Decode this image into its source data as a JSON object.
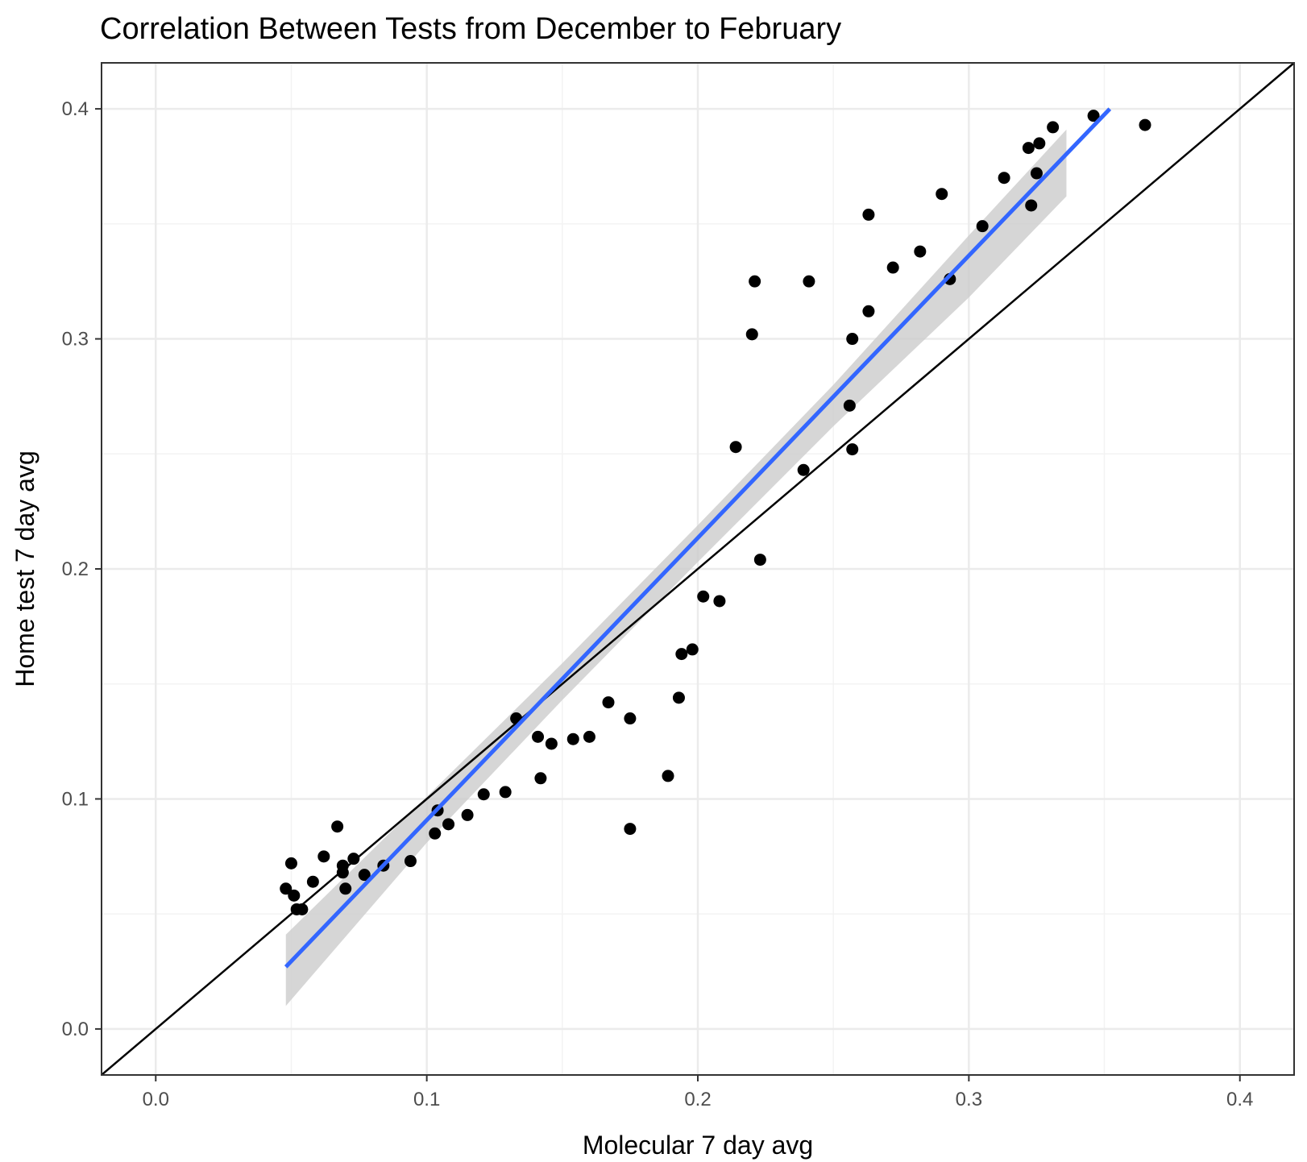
{
  "chart_data": {
    "type": "scatter",
    "title": "Correlation Between Tests from December to February",
    "xlabel": "Molecular 7 day avg",
    "ylabel": "Home test 7 day avg",
    "xlim": [
      -0.02,
      0.42
    ],
    "ylim": [
      -0.02,
      0.42
    ],
    "x_ticks": [
      0.0,
      0.1,
      0.2,
      0.3,
      0.4
    ],
    "x_tick_labels": [
      "0.0",
      "0.1",
      "0.2",
      "0.3",
      "0.4"
    ],
    "y_ticks": [
      0.0,
      0.1,
      0.2,
      0.3,
      0.4
    ],
    "y_tick_labels": [
      "0.0",
      "0.1",
      "0.2",
      "0.3",
      "0.4"
    ],
    "grid": true,
    "points": [
      {
        "x": 0.048,
        "y": 0.061
      },
      {
        "x": 0.05,
        "y": 0.072
      },
      {
        "x": 0.051,
        "y": 0.058
      },
      {
        "x": 0.052,
        "y": 0.052
      },
      {
        "x": 0.054,
        "y": 0.052
      },
      {
        "x": 0.058,
        "y": 0.064
      },
      {
        "x": 0.062,
        "y": 0.075
      },
      {
        "x": 0.067,
        "y": 0.088
      },
      {
        "x": 0.069,
        "y": 0.068
      },
      {
        "x": 0.069,
        "y": 0.071
      },
      {
        "x": 0.07,
        "y": 0.061
      },
      {
        "x": 0.073,
        "y": 0.074
      },
      {
        "x": 0.077,
        "y": 0.067
      },
      {
        "x": 0.084,
        "y": 0.071
      },
      {
        "x": 0.094,
        "y": 0.073
      },
      {
        "x": 0.103,
        "y": 0.085
      },
      {
        "x": 0.104,
        "y": 0.095
      },
      {
        "x": 0.108,
        "y": 0.089
      },
      {
        "x": 0.115,
        "y": 0.093
      },
      {
        "x": 0.121,
        "y": 0.102
      },
      {
        "x": 0.129,
        "y": 0.103
      },
      {
        "x": 0.133,
        "y": 0.135
      },
      {
        "x": 0.141,
        "y": 0.127
      },
      {
        "x": 0.142,
        "y": 0.109
      },
      {
        "x": 0.146,
        "y": 0.124
      },
      {
        "x": 0.154,
        "y": 0.126
      },
      {
        "x": 0.16,
        "y": 0.127
      },
      {
        "x": 0.167,
        "y": 0.142
      },
      {
        "x": 0.175,
        "y": 0.135
      },
      {
        "x": 0.175,
        "y": 0.087
      },
      {
        "x": 0.189,
        "y": 0.11
      },
      {
        "x": 0.193,
        "y": 0.144
      },
      {
        "x": 0.194,
        "y": 0.163
      },
      {
        "x": 0.198,
        "y": 0.165
      },
      {
        "x": 0.202,
        "y": 0.188
      },
      {
        "x": 0.208,
        "y": 0.186
      },
      {
        "x": 0.214,
        "y": 0.253
      },
      {
        "x": 0.22,
        "y": 0.302
      },
      {
        "x": 0.221,
        "y": 0.325
      },
      {
        "x": 0.223,
        "y": 0.204
      },
      {
        "x": 0.239,
        "y": 0.243
      },
      {
        "x": 0.241,
        "y": 0.325
      },
      {
        "x": 0.256,
        "y": 0.271
      },
      {
        "x": 0.257,
        "y": 0.3
      },
      {
        "x": 0.257,
        "y": 0.252
      },
      {
        "x": 0.263,
        "y": 0.354
      },
      {
        "x": 0.263,
        "y": 0.312
      },
      {
        "x": 0.272,
        "y": 0.331
      },
      {
        "x": 0.282,
        "y": 0.338
      },
      {
        "x": 0.29,
        "y": 0.363
      },
      {
        "x": 0.293,
        "y": 0.326
      },
      {
        "x": 0.305,
        "y": 0.349
      },
      {
        "x": 0.313,
        "y": 0.37
      },
      {
        "x": 0.322,
        "y": 0.383
      },
      {
        "x": 0.323,
        "y": 0.358
      },
      {
        "x": 0.325,
        "y": 0.372
      },
      {
        "x": 0.326,
        "y": 0.385
      },
      {
        "x": 0.331,
        "y": 0.392
      },
      {
        "x": 0.346,
        "y": 0.397
      },
      {
        "x": 0.365,
        "y": 0.393
      }
    ],
    "reference_line": {
      "type": "identity",
      "slope": 1,
      "intercept": 0,
      "color": "#000000"
    },
    "fit_line": {
      "type": "linear",
      "color": "#3366ff",
      "x": [
        0.048,
        0.352
      ],
      "y": [
        0.027,
        0.4
      ]
    },
    "confidence_band": {
      "color": "#cccccc",
      "x": [
        0.048,
        0.1,
        0.15,
        0.2,
        0.25,
        0.3,
        0.336
      ],
      "lower": [
        0.01,
        0.081,
        0.143,
        0.203,
        0.262,
        0.318,
        0.362
      ],
      "upper": [
        0.041,
        0.101,
        0.159,
        0.219,
        0.28,
        0.345,
        0.391
      ]
    },
    "colors": {
      "points": "#000000",
      "grid_major": "#ebebeb",
      "grid_minor": "#f3f3f3",
      "panel_border": "#333333"
    }
  }
}
